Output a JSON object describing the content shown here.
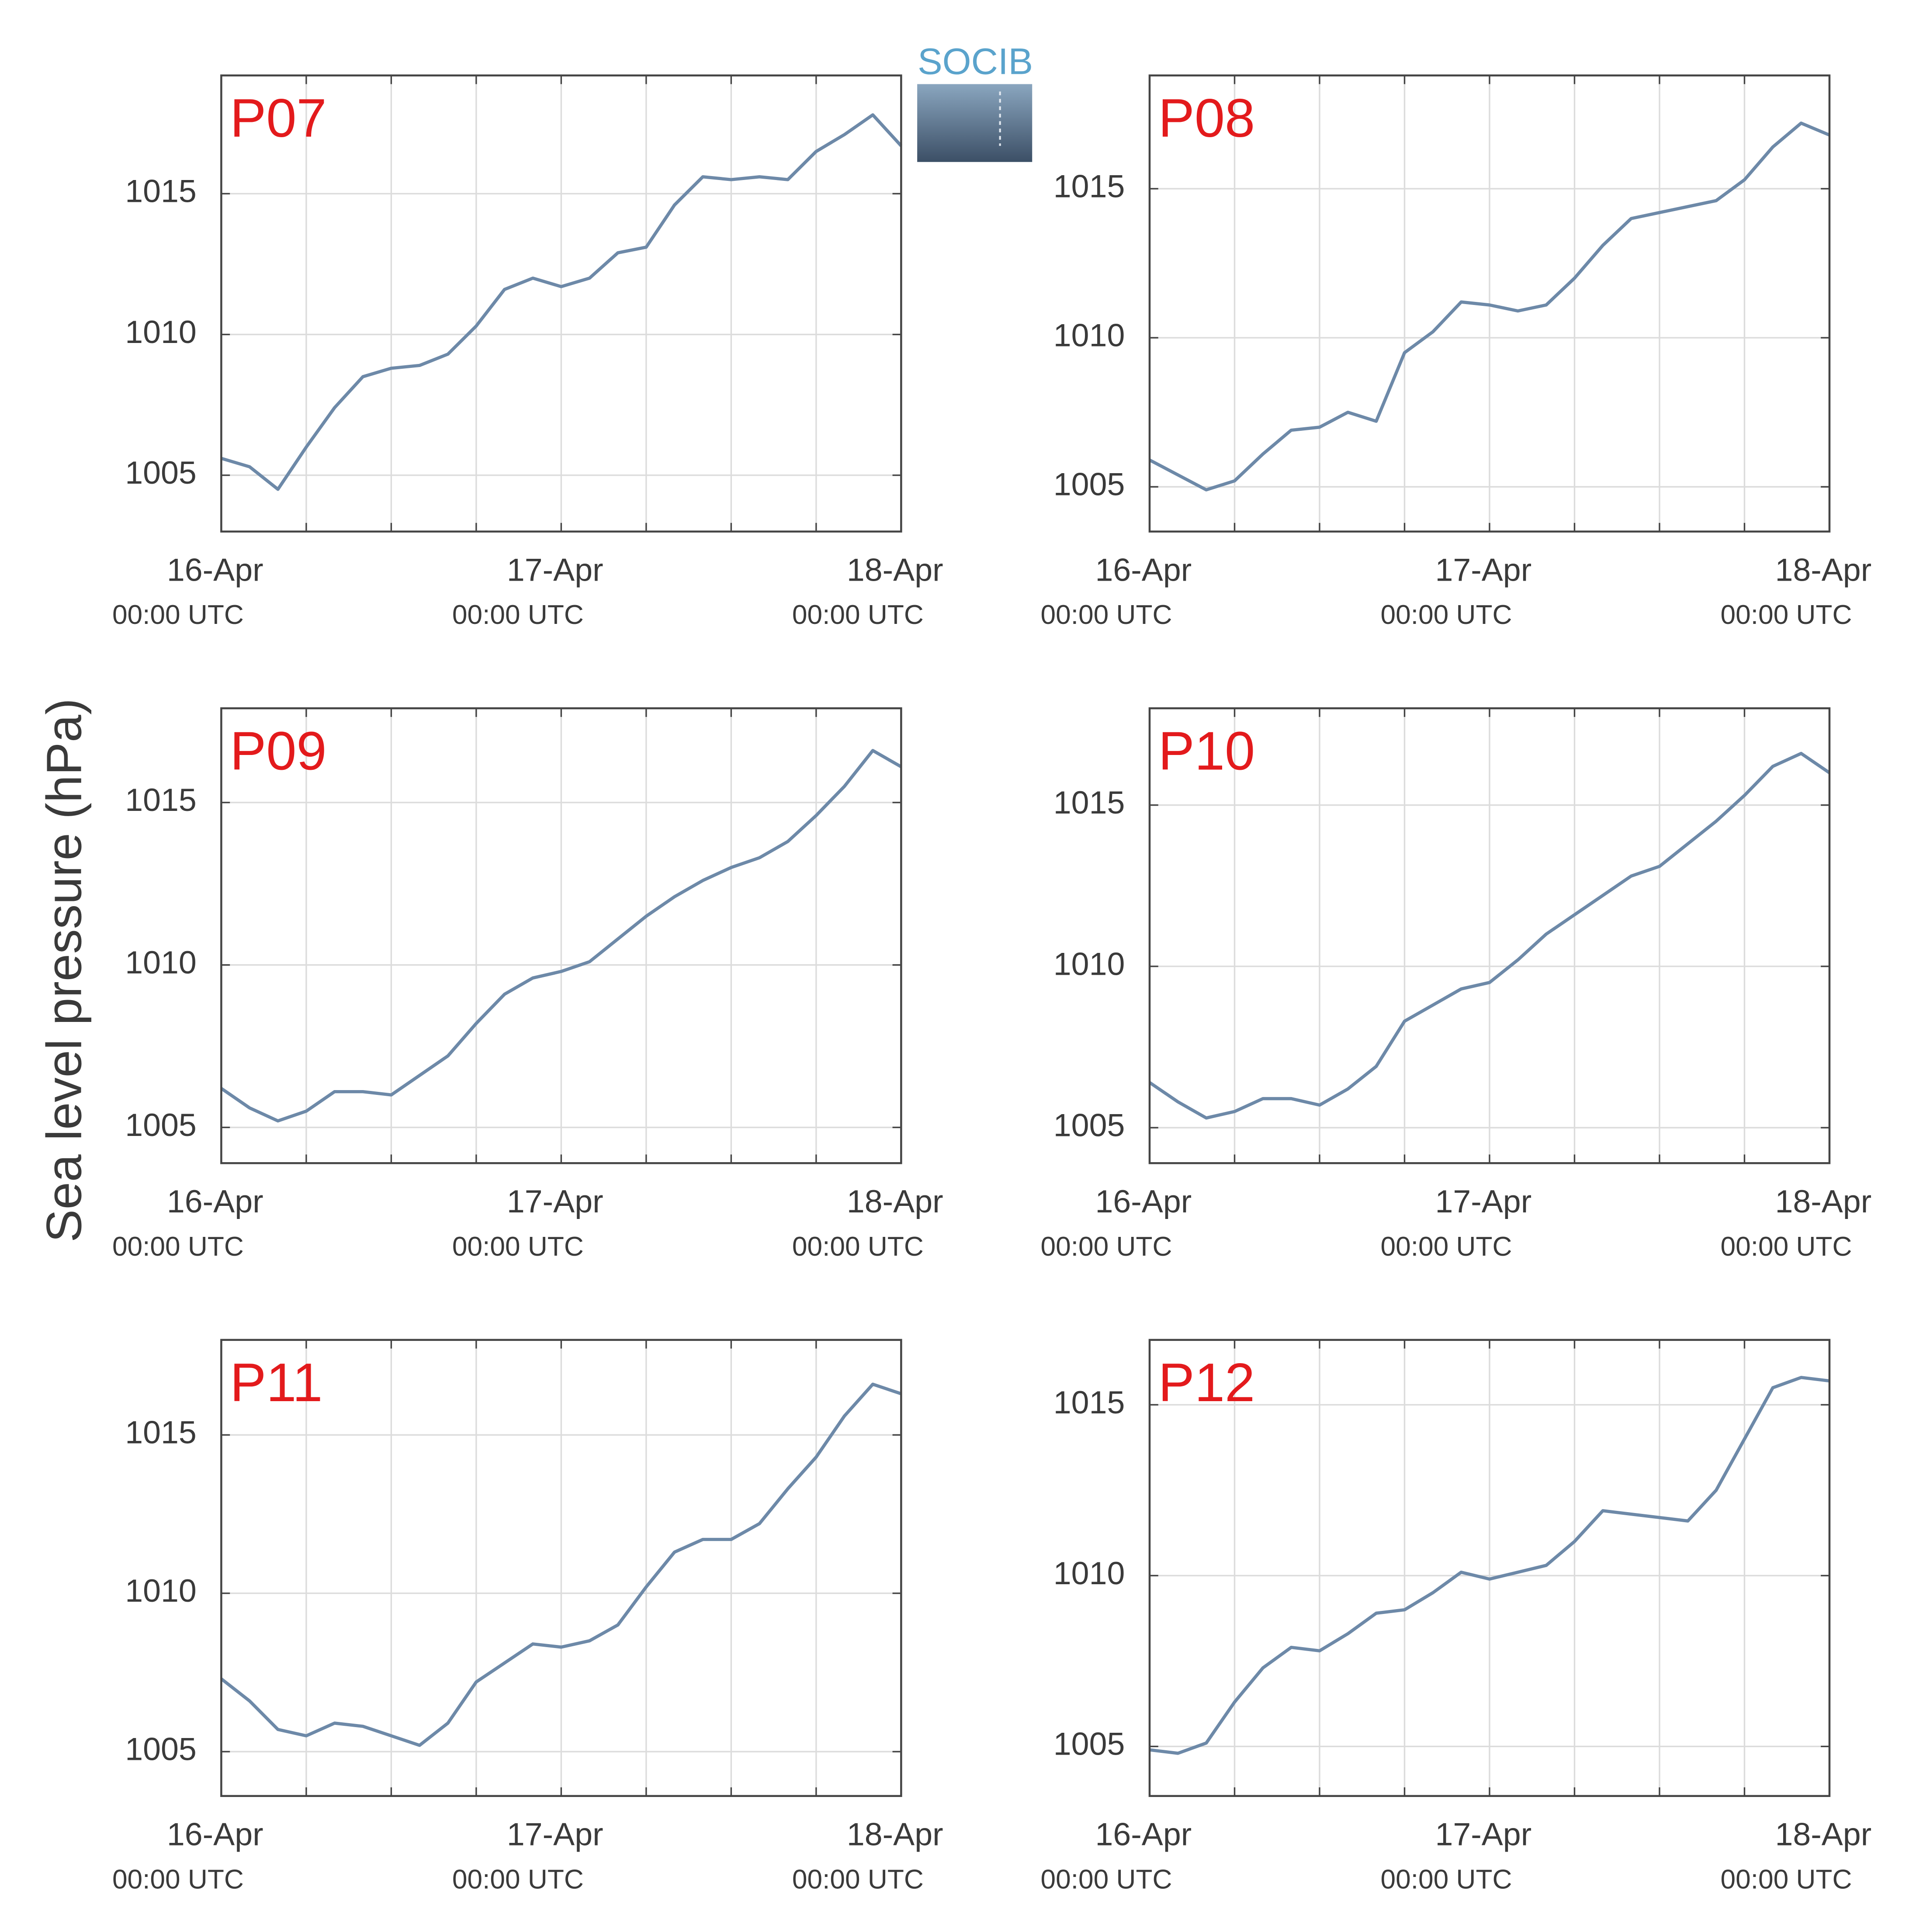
{
  "ylabel": "Sea level pressure (hPa)",
  "logo": "SOCIB",
  "chart_data": [
    {
      "type": "line",
      "title": "P07",
      "title_color": "#e31a1c",
      "color": "#6d89a8",
      "grid": true,
      "x": [
        0,
        2,
        4,
        6,
        8,
        10,
        12,
        14,
        16,
        18,
        20,
        22,
        24,
        26,
        28,
        30,
        32,
        34,
        36,
        38,
        40,
        42,
        44,
        46,
        48
      ],
      "values": [
        1005.6,
        1005.3,
        1004.5,
        1006.0,
        1007.4,
        1008.5,
        1008.8,
        1008.9,
        1009.3,
        1010.3,
        1011.6,
        1012.0,
        1011.7,
        1012.0,
        1012.9,
        1013.1,
        1014.6,
        1015.6,
        1015.5,
        1015.6,
        1015.5,
        1016.5,
        1017.1,
        1017.8,
        1016.7
      ],
      "xlim": [
        0,
        48
      ],
      "xticks": [
        {
          "value": 0,
          "label": "16-Apr",
          "sublabel": "00:00 UTC"
        },
        6,
        12,
        18,
        {
          "value": 24,
          "label": "17-Apr",
          "sublabel": "00:00 UTC"
        },
        30,
        36,
        42,
        {
          "value": 48,
          "label": "18-Apr",
          "sublabel": "00:00 UTC"
        }
      ],
      "ylim": [
        1003.0,
        1019.2
      ],
      "yticks": [
        1005,
        1010,
        1015
      ]
    },
    {
      "type": "line",
      "title": "P08",
      "title_color": "#e31a1c",
      "color": "#6d89a8",
      "grid": true,
      "x": [
        0,
        2,
        4,
        6,
        8,
        10,
        12,
        14,
        16,
        18,
        20,
        22,
        24,
        26,
        28,
        30,
        32,
        34,
        36,
        38,
        40,
        42,
        44,
        46,
        48
      ],
      "values": [
        1005.9,
        1005.4,
        1004.9,
        1005.2,
        1006.1,
        1006.9,
        1007.0,
        1007.5,
        1007.2,
        1009.5,
        1010.2,
        1011.2,
        1011.1,
        1010.9,
        1011.1,
        1012.0,
        1013.1,
        1014.0,
        1014.2,
        1014.4,
        1014.6,
        1015.3,
        1016.4,
        1017.2,
        1016.8
      ],
      "xlim": [
        0,
        48
      ],
      "xticks": [
        {
          "value": 0,
          "label": "16-Apr",
          "sublabel": "00:00 UTC"
        },
        6,
        12,
        18,
        {
          "value": 24,
          "label": "17-Apr",
          "sublabel": "00:00 UTC"
        },
        30,
        36,
        42,
        {
          "value": 48,
          "label": "18-Apr",
          "sublabel": "00:00 UTC"
        }
      ],
      "ylim": [
        1003.5,
        1018.8
      ],
      "yticks": [
        1005,
        1010,
        1015
      ]
    },
    {
      "type": "line",
      "title": "P09",
      "title_color": "#e31a1c",
      "color": "#6d89a8",
      "grid": true,
      "x": [
        0,
        2,
        4,
        6,
        8,
        10,
        12,
        14,
        16,
        18,
        20,
        22,
        24,
        26,
        28,
        30,
        32,
        34,
        36,
        38,
        40,
        42,
        44,
        46,
        48
      ],
      "values": [
        1006.2,
        1005.6,
        1005.2,
        1005.5,
        1006.1,
        1006.1,
        1006.0,
        1006.6,
        1007.2,
        1008.2,
        1009.1,
        1009.6,
        1009.8,
        1010.1,
        1010.8,
        1011.5,
        1012.1,
        1012.6,
        1013.0,
        1013.3,
        1013.8,
        1014.6,
        1015.5,
        1016.6,
        1016.1
      ],
      "xlim": [
        0,
        48
      ],
      "xticks": [
        {
          "value": 0,
          "label": "16-Apr",
          "sublabel": "00:00 UTC"
        },
        6,
        12,
        18,
        {
          "value": 24,
          "label": "17-Apr",
          "sublabel": "00:00 UTC"
        },
        30,
        36,
        42,
        {
          "value": 48,
          "label": "18-Apr",
          "sublabel": "00:00 UTC"
        }
      ],
      "ylim": [
        1003.9,
        1017.9
      ],
      "yticks": [
        1005,
        1010,
        1015
      ]
    },
    {
      "type": "line",
      "title": "P10",
      "title_color": "#e31a1c",
      "color": "#6d89a8",
      "grid": true,
      "x": [
        0,
        2,
        4,
        6,
        8,
        10,
        12,
        14,
        16,
        18,
        20,
        22,
        24,
        26,
        28,
        30,
        32,
        34,
        36,
        38,
        40,
        42,
        44,
        46,
        48
      ],
      "values": [
        1006.4,
        1005.8,
        1005.3,
        1005.5,
        1005.9,
        1005.9,
        1005.7,
        1006.2,
        1006.9,
        1008.3,
        1008.8,
        1009.3,
        1009.5,
        1010.2,
        1011.0,
        1011.6,
        1012.2,
        1012.8,
        1013.1,
        1013.8,
        1014.5,
        1015.3,
        1016.2,
        1016.6,
        1016.0
      ],
      "xlim": [
        0,
        48
      ],
      "xticks": [
        {
          "value": 0,
          "label": "16-Apr",
          "sublabel": "00:00 UTC"
        },
        6,
        12,
        18,
        {
          "value": 24,
          "label": "17-Apr",
          "sublabel": "00:00 UTC"
        },
        30,
        36,
        42,
        {
          "value": 48,
          "label": "18-Apr",
          "sublabel": "00:00 UTC"
        }
      ],
      "ylim": [
        1003.9,
        1018.0
      ],
      "yticks": [
        1005,
        1010,
        1015
      ]
    },
    {
      "type": "line",
      "title": "P11",
      "title_color": "#e31a1c",
      "color": "#6d89a8",
      "grid": true,
      "x": [
        0,
        2,
        4,
        6,
        8,
        10,
        12,
        14,
        16,
        18,
        20,
        22,
        24,
        26,
        28,
        30,
        32,
        34,
        36,
        38,
        40,
        42,
        44,
        46,
        48
      ],
      "values": [
        1007.3,
        1006.6,
        1005.7,
        1005.5,
        1005.9,
        1005.8,
        1005.5,
        1005.2,
        1005.9,
        1007.2,
        1007.8,
        1008.4,
        1008.3,
        1008.5,
        1009.0,
        1010.2,
        1011.3,
        1011.7,
        1011.7,
        1012.2,
        1013.3,
        1014.3,
        1015.6,
        1016.6,
        1016.3
      ],
      "xlim": [
        0,
        48
      ],
      "xticks": [
        {
          "value": 0,
          "label": "16-Apr",
          "sublabel": "00:00 UTC"
        },
        6,
        12,
        18,
        {
          "value": 24,
          "label": "17-Apr",
          "sublabel": "00:00 UTC"
        },
        30,
        36,
        42,
        {
          "value": 48,
          "label": "18-Apr",
          "sublabel": "00:00 UTC"
        }
      ],
      "ylim": [
        1003.6,
        1018.0
      ],
      "yticks": [
        1005,
        1010,
        1015
      ]
    },
    {
      "type": "line",
      "title": "P12",
      "title_color": "#e31a1c",
      "color": "#6d89a8",
      "grid": true,
      "x": [
        0,
        2,
        4,
        6,
        8,
        10,
        12,
        14,
        16,
        18,
        20,
        22,
        24,
        26,
        28,
        30,
        32,
        34,
        36,
        38,
        40,
        42,
        44,
        46,
        48
      ],
      "values": [
        1004.9,
        1004.8,
        1005.1,
        1006.3,
        1007.3,
        1007.9,
        1007.8,
        1008.3,
        1008.9,
        1009.0,
        1009.5,
        1010.1,
        1009.9,
        1010.1,
        1010.3,
        1011.0,
        1011.9,
        1011.8,
        1011.7,
        1011.6,
        1012.5,
        1014.0,
        1015.5,
        1015.8,
        1015.7
      ],
      "xlim": [
        0,
        48
      ],
      "xticks": [
        {
          "value": 0,
          "label": "16-Apr",
          "sublabel": "00:00 UTC"
        },
        6,
        12,
        18,
        {
          "value": 24,
          "label": "17-Apr",
          "sublabel": "00:00 UTC"
        },
        30,
        36,
        42,
        {
          "value": 48,
          "label": "18-Apr",
          "sublabel": "00:00 UTC"
        }
      ],
      "ylim": [
        1003.55,
        1016.9
      ],
      "yticks": [
        1005,
        1010,
        1015
      ]
    }
  ]
}
